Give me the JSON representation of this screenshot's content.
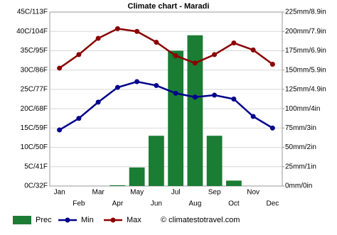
{
  "chart_data": {
    "type": "combo",
    "title": "Climate chart - Maradi",
    "categories": [
      "Jan",
      "Feb",
      "Mar",
      "Apr",
      "May",
      "Jun",
      "Jul",
      "Aug",
      "Sep",
      "Oct",
      "Nov",
      "Dec"
    ],
    "ylim": [
      0,
      45
    ],
    "yticks": [
      {
        "value": 0,
        "label": "0C/32F"
      },
      {
        "value": 5,
        "label": "5C/41F"
      },
      {
        "value": 10,
        "label": "10C/50F"
      },
      {
        "value": 15,
        "label": "15C/59F"
      },
      {
        "value": 20,
        "label": "20C/68F"
      },
      {
        "value": 25,
        "label": "25C/77F"
      },
      {
        "value": 30,
        "label": "30C/86F"
      },
      {
        "value": 35,
        "label": "35C/95F"
      },
      {
        "value": 40,
        "label": "40C/104F"
      },
      {
        "value": 45,
        "label": "45C/113F"
      }
    ],
    "y2lim": [
      0,
      225
    ],
    "y2ticks": [
      {
        "value": 0,
        "label": "0mm/0in"
      },
      {
        "value": 25,
        "label": "25mm/1in"
      },
      {
        "value": 50,
        "label": "50mm/2in"
      },
      {
        "value": 75,
        "label": "75mm/3in"
      },
      {
        "value": 100,
        "label": "100mm/4in"
      },
      {
        "value": 125,
        "label": "125mm/4.9in"
      },
      {
        "value": 150,
        "label": "150mm/5.9in"
      },
      {
        "value": 175,
        "label": "175mm/6.9in"
      },
      {
        "value": 200,
        "label": "200mm/7.9in"
      },
      {
        "value": 225,
        "label": "225mm/8.9in"
      }
    ],
    "grid": true,
    "series": [
      {
        "name": "Prec",
        "type": "bar",
        "axis": "y2",
        "color": "#1b7c34",
        "values": [
          0,
          0,
          0,
          1,
          24,
          65,
          175,
          195,
          65,
          7,
          0,
          0
        ]
      },
      {
        "name": "Min",
        "type": "line",
        "color": "#00008b",
        "values": [
          14.5,
          17.5,
          21.7,
          25.5,
          27,
          26,
          24,
          23,
          23.5,
          22.5,
          18,
          15
        ]
      },
      {
        "name": "Max",
        "type": "line",
        "color": "#8b0000",
        "values": [
          30.5,
          34,
          38.2,
          40.7,
          40,
          37.2,
          33.7,
          31.8,
          34,
          37,
          35.2,
          31.5
        ]
      }
    ],
    "credit": "© climatestotravel.com"
  }
}
